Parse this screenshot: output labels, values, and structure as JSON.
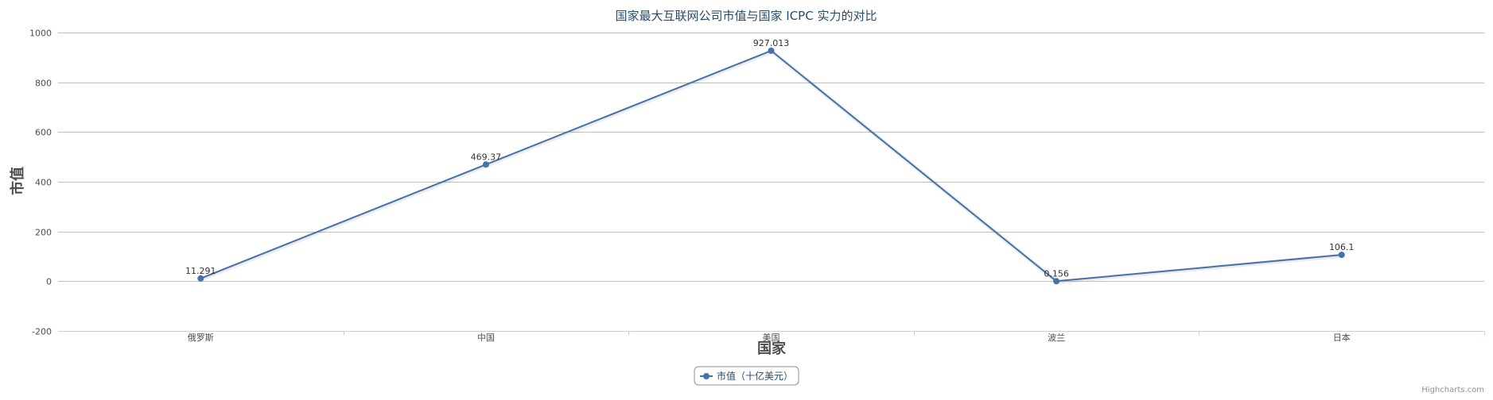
{
  "chart_data": {
    "type": "line",
    "title": "国家最大互联网公司市值与国家 ICPC 实力的对比",
    "xlabel": "国家",
    "ylabel": "市值",
    "categories": [
      "俄罗斯",
      "中国",
      "美国",
      "波兰",
      "日本"
    ],
    "series": [
      {
        "name": "市值（十亿美元）",
        "values": [
          11.291,
          469.37,
          927.013,
          0.156,
          106.1
        ],
        "labels": [
          "11.291",
          "469.37",
          "927.013",
          "0.156",
          "106.1"
        ]
      }
    ],
    "ylim": [
      -200,
      1000
    ],
    "yticks": [
      -200,
      0,
      200,
      400,
      600,
      800,
      1000
    ],
    "grid": true,
    "legend_position": "bottom-center",
    "colors": {
      "series": "#4572a7",
      "grid": "#c0c0c0",
      "axis": "#c0d0e0"
    },
    "credits": "Highcharts.com"
  }
}
